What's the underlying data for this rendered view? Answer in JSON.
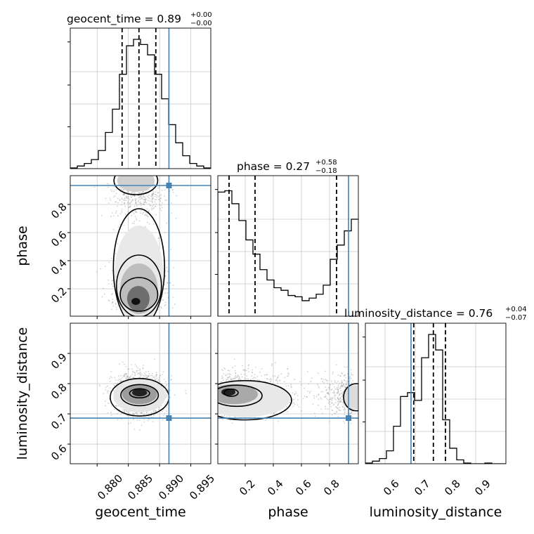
{
  "chart_data": {
    "type": "corner",
    "parameters": [
      "geocent_time",
      "phase",
      "luminosity_distance"
    ],
    "truths": {
      "geocent_time": 0.8915,
      "phase": 0.935,
      "luminosity_distance": 0.686
    },
    "colors": {
      "truth": "#4682b4",
      "hist": "#000000",
      "scatter": "#bbbbbb"
    },
    "titles": {
      "geocent_time": {
        "prefix": "geocent_time = 0.89",
        "plus": "+0.00",
        "minus": "−0.00"
      },
      "phase": {
        "prefix": "phase = 0.27",
        "plus": "+0.58",
        "minus": "−0.18"
      },
      "luminosity_distance": {
        "prefix": "luminosity_distance = 0.76",
        "plus": "+0.04",
        "minus": "−0.07"
      }
    },
    "axis_labels": {
      "geocent_time": "geocent_time",
      "phase": "phase",
      "luminosity_distance": "luminosity_distance"
    },
    "ranges": {
      "geocent_time": [
        0.8757,
        0.8982
      ],
      "phase": [
        0.005,
        1.005
      ],
      "luminosity_distance": [
        0.535,
        1.0
      ]
    },
    "ticks": {
      "geocent_time": [
        "0.880",
        "0.885",
        "0.890",
        "0.895"
      ],
      "phase": [
        "0.2",
        "0.4",
        "0.6",
        "0.8"
      ],
      "luminosity_distance_y": [
        "0.6",
        "0.7",
        "0.8",
        "0.9"
      ],
      "luminosity_distance_x": [
        "0.6",
        "0.7",
        "0.8",
        "0.9"
      ]
    },
    "quantiles": {
      "geocent_time": [
        0.884,
        0.8867,
        0.8894
      ],
      "phase": [
        0.085,
        0.27,
        0.85
      ],
      "luminosity_distance": [
        0.695,
        0.76,
        0.8
      ]
    },
    "histograms": {
      "geocent_time": {
        "edges_start": 0.8757,
        "bin_width": 0.001125,
        "counts": [
          0.005,
          0.02,
          0.04,
          0.07,
          0.14,
          0.28,
          0.46,
          0.73,
          0.95,
          1.0,
          0.96,
          0.88,
          0.73,
          0.54,
          0.34,
          0.2,
          0.1,
          0.04,
          0.02,
          0.005
        ]
      },
      "phase": {
        "edges_start": 0.005,
        "bin_width": 0.05,
        "counts": [
          0.96,
          0.97,
          0.87,
          0.74,
          0.59,
          0.48,
          0.36,
          0.28,
          0.22,
          0.2,
          0.16,
          0.15,
          0.12,
          0.14,
          0.17,
          0.24,
          0.44,
          0.55,
          0.66,
          0.75
        ]
      },
      "luminosity_distance": {
        "edges_start": 0.535,
        "bin_width": 0.02325,
        "counts": [
          0.005,
          0.02,
          0.04,
          0.1,
          0.29,
          0.52,
          0.55,
          0.49,
          0.82,
          1.0,
          0.88,
          0.34,
          0.12,
          0.03,
          0.005,
          0.0,
          0.0,
          0.005,
          0.0,
          0.0
        ]
      }
    }
  }
}
